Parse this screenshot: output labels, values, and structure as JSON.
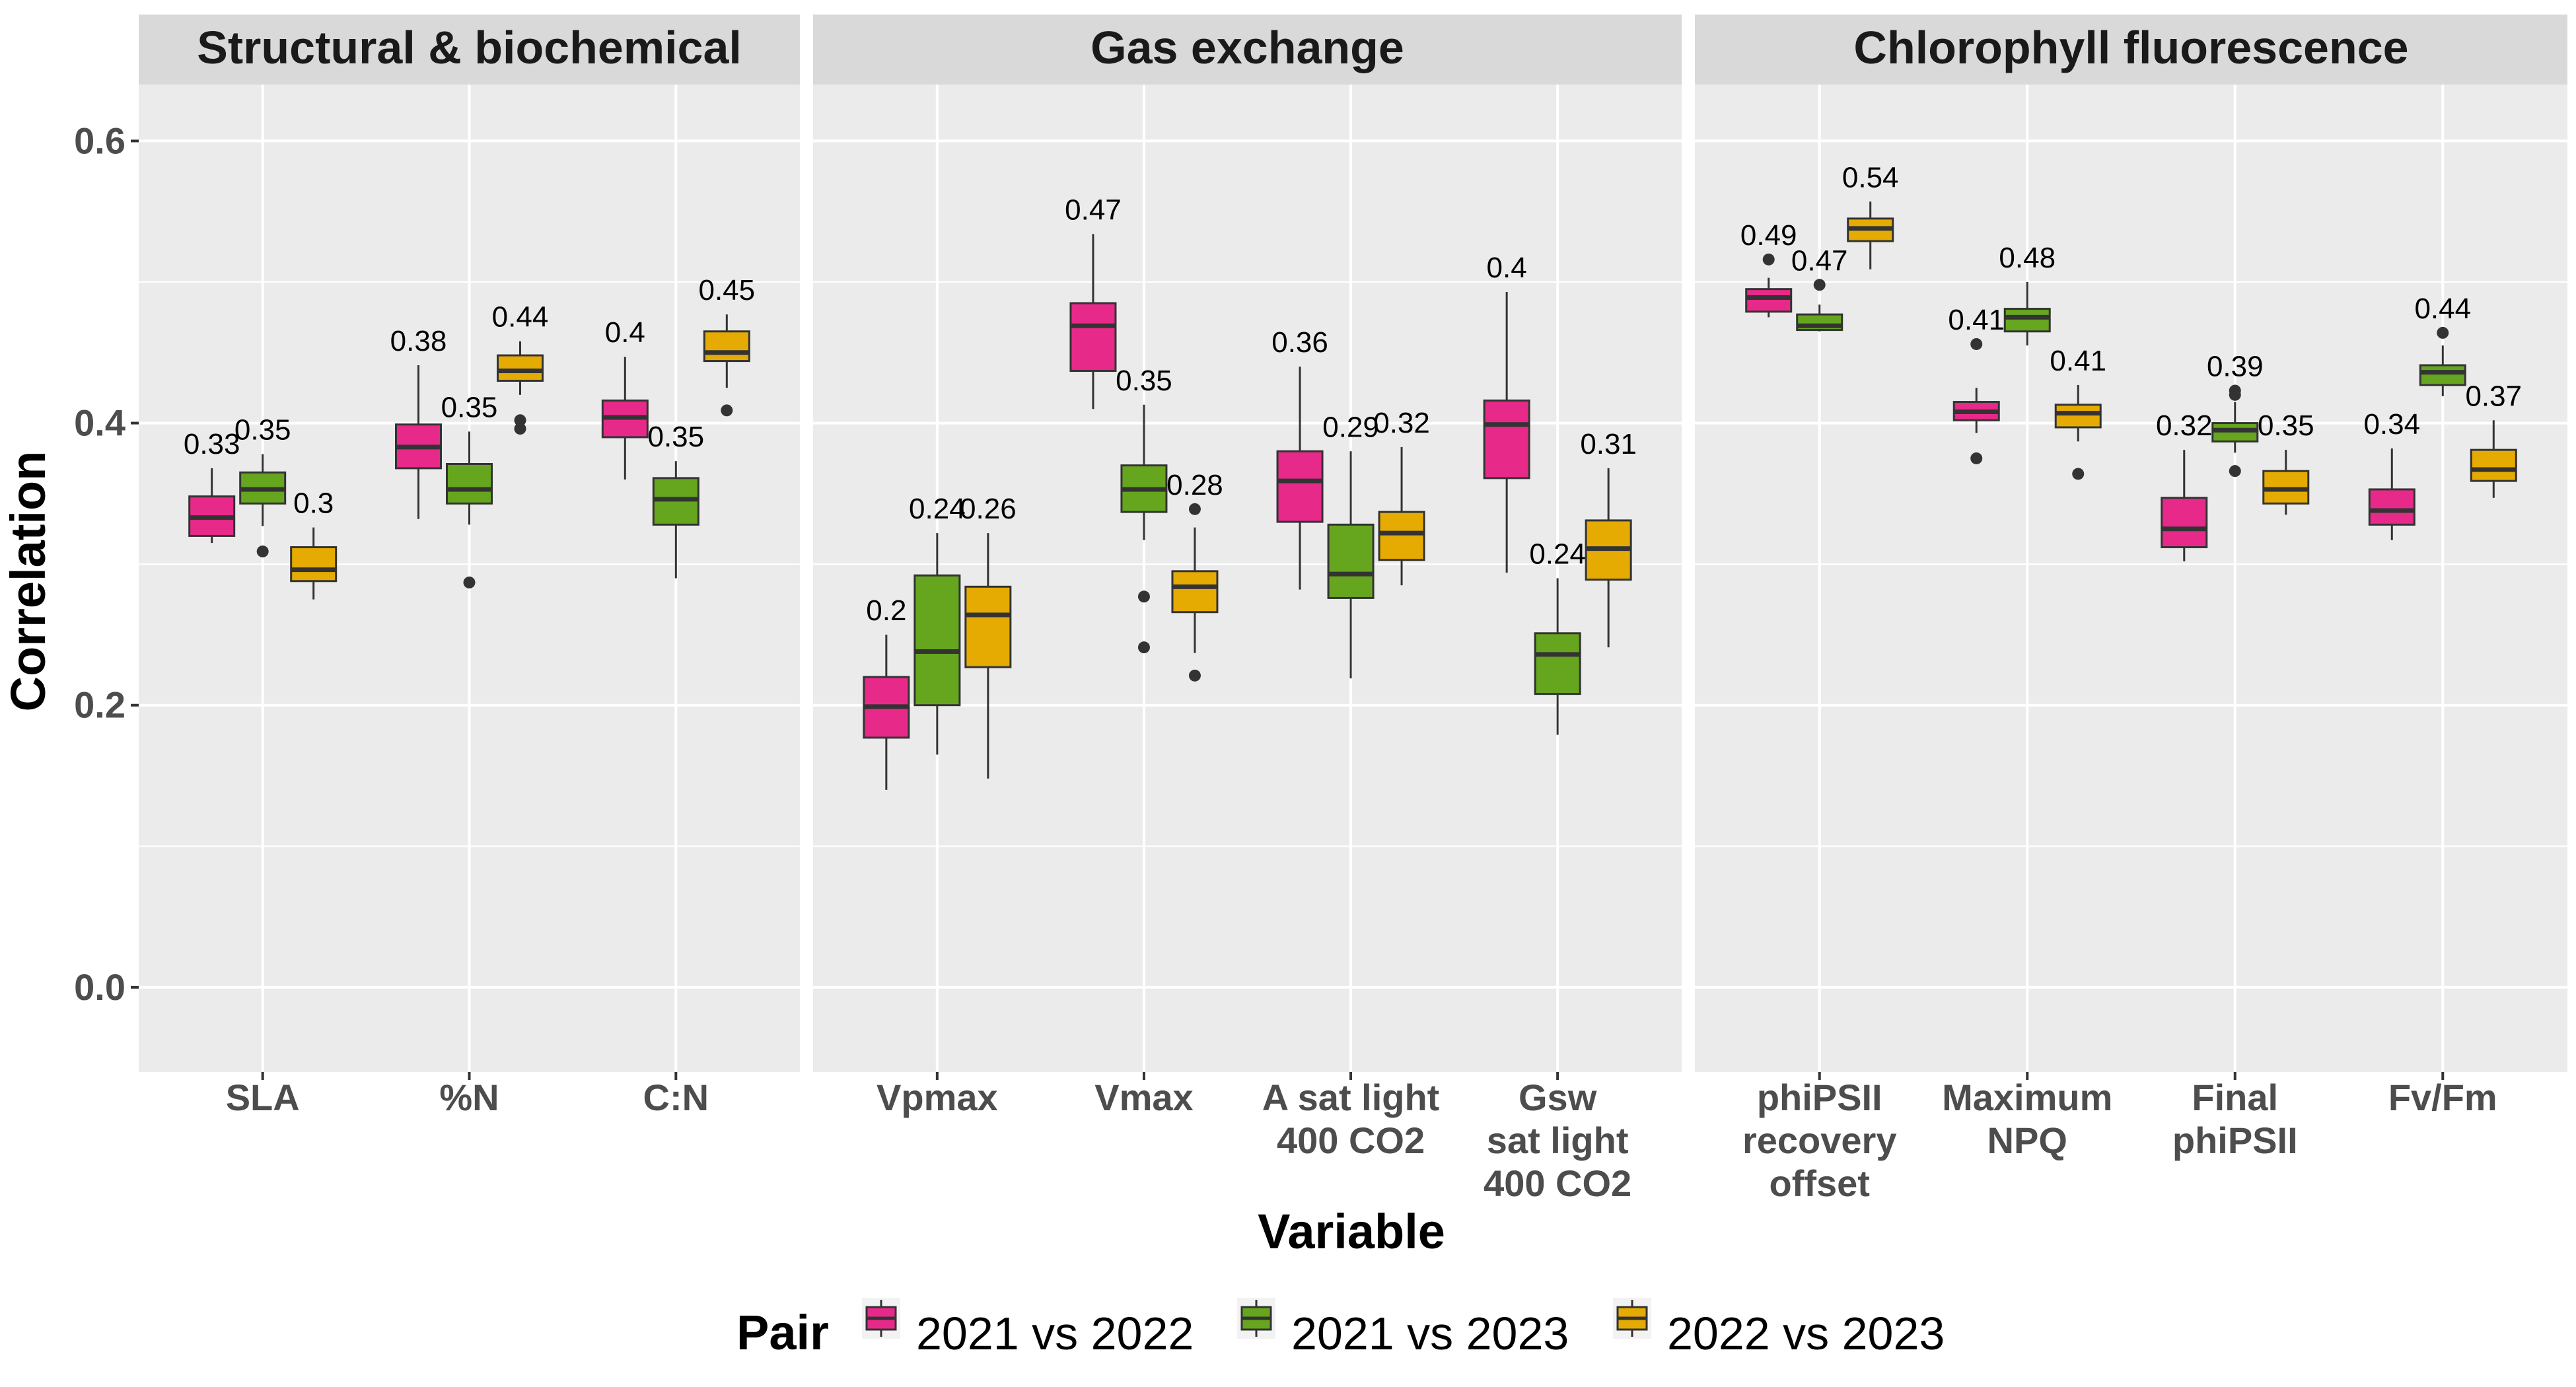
{
  "chart_data": {
    "type": "boxplot",
    "ylabel": "Correlation",
    "xlabel": "Variable",
    "ylim": [
      -0.06,
      0.64
    ],
    "y_ticks": [
      "0.0",
      "0.2",
      "0.4",
      "0.6"
    ],
    "grid": true,
    "legend": {
      "title": "Pair",
      "position": "bottom",
      "entries": [
        "2021 vs 2022",
        "2021 vs 2023",
        "2022 vs 2023"
      ]
    },
    "series_colors": [
      "#E7298A",
      "#66A61E",
      "#E6AB02"
    ],
    "facets": [
      {
        "title": "Structural & biochemical",
        "categories": [
          {
            "label": [
              "SLA"
            ],
            "boxes": [
              {
                "pair": "2021 vs 2022",
                "label": "0.33",
                "whislo": 0.315,
                "q1": 0.32,
                "med": 0.333,
                "q3": 0.348,
                "whishi": 0.368,
                "outliers": []
              },
              {
                "pair": "2021 vs 2023",
                "label": "0.35",
                "whislo": 0.327,
                "q1": 0.343,
                "med": 0.353,
                "q3": 0.365,
                "whishi": 0.378,
                "outliers": [
                  0.309
                ]
              },
              {
                "pair": "2022 vs 2023",
                "label": "0.3",
                "whislo": 0.275,
                "q1": 0.288,
                "med": 0.296,
                "q3": 0.312,
                "whishi": 0.326,
                "outliers": []
              }
            ]
          },
          {
            "label": [
              "%N"
            ],
            "boxes": [
              {
                "pair": "2021 vs 2022",
                "label": "0.38",
                "whislo": 0.332,
                "q1": 0.368,
                "med": 0.383,
                "q3": 0.399,
                "whishi": 0.441,
                "outliers": []
              },
              {
                "pair": "2021 vs 2023",
                "label": "0.35",
                "whislo": 0.328,
                "q1": 0.343,
                "med": 0.353,
                "q3": 0.371,
                "whishi": 0.394,
                "outliers": [
                  0.287
                ]
              },
              {
                "pair": "2022 vs 2023",
                "label": "0.44",
                "whislo": 0.42,
                "q1": 0.43,
                "med": 0.437,
                "q3": 0.448,
                "whishi": 0.458,
                "outliers": [
                  0.402,
                  0.396
                ]
              }
            ]
          },
          {
            "label": [
              "C:N"
            ],
            "boxes": [
              {
                "pair": "2021 vs 2022",
                "label": "0.4",
                "whislo": 0.36,
                "q1": 0.39,
                "med": 0.404,
                "q3": 0.416,
                "whishi": 0.447,
                "outliers": []
              },
              {
                "pair": "2021 vs 2023",
                "label": "0.35",
                "whislo": 0.29,
                "q1": 0.328,
                "med": 0.346,
                "q3": 0.361,
                "whishi": 0.373,
                "outliers": []
              },
              {
                "pair": "2022 vs 2023",
                "label": "0.45",
                "whislo": 0.425,
                "q1": 0.444,
                "med": 0.45,
                "q3": 0.465,
                "whishi": 0.477,
                "outliers": [
                  0.409
                ]
              }
            ]
          }
        ]
      },
      {
        "title": "Gas exchange",
        "categories": [
          {
            "label": [
              "Vpmax"
            ],
            "boxes": [
              {
                "pair": "2021 vs 2022",
                "label": "0.2",
                "whislo": 0.14,
                "q1": 0.177,
                "med": 0.199,
                "q3": 0.22,
                "whishi": 0.25,
                "outliers": []
              },
              {
                "pair": "2021 vs 2023",
                "label": "0.24",
                "whislo": 0.165,
                "q1": 0.2,
                "med": 0.238,
                "q3": 0.292,
                "whishi": 0.322,
                "outliers": []
              },
              {
                "pair": "2022 vs 2023",
                "label": "0.26",
                "whislo": 0.148,
                "q1": 0.227,
                "med": 0.264,
                "q3": 0.284,
                "whishi": 0.322,
                "outliers": []
              }
            ]
          },
          {
            "label": [
              "Vmax"
            ],
            "boxes": [
              {
                "pair": "2021 vs 2022",
                "label": "0.47",
                "whislo": 0.41,
                "q1": 0.437,
                "med": 0.469,
                "q3": 0.485,
                "whishi": 0.534,
                "outliers": []
              },
              {
                "pair": "2021 vs 2023",
                "label": "0.35",
                "whislo": 0.317,
                "q1": 0.337,
                "med": 0.353,
                "q3": 0.37,
                "whishi": 0.413,
                "outliers": [
                  0.277,
                  0.241
                ]
              },
              {
                "pair": "2022 vs 2023",
                "label": "0.28",
                "whislo": 0.237,
                "q1": 0.266,
                "med": 0.284,
                "q3": 0.295,
                "whishi": 0.326,
                "outliers": [
                  0.339,
                  0.221
                ]
              }
            ]
          },
          {
            "label": [
              "A sat light",
              "400 CO2"
            ],
            "boxes": [
              {
                "pair": "2021 vs 2022",
                "label": "0.36",
                "whislo": 0.282,
                "q1": 0.33,
                "med": 0.359,
                "q3": 0.38,
                "whishi": 0.44,
                "outliers": []
              },
              {
                "pair": "2021 vs 2023",
                "label": "0.29",
                "whislo": 0.219,
                "q1": 0.276,
                "med": 0.293,
                "q3": 0.328,
                "whishi": 0.38,
                "outliers": []
              },
              {
                "pair": "2022 vs 2023",
                "label": "0.32",
                "whislo": 0.285,
                "q1": 0.303,
                "med": 0.322,
                "q3": 0.337,
                "whishi": 0.383,
                "outliers": []
              }
            ]
          },
          {
            "label": [
              "Gsw",
              "sat light",
              "400 CO2"
            ],
            "boxes": [
              {
                "pair": "2021 vs 2022",
                "label": "0.4",
                "whislo": 0.294,
                "q1": 0.361,
                "med": 0.399,
                "q3": 0.416,
                "whishi": 0.493,
                "outliers": []
              },
              {
                "pair": "2021 vs 2023",
                "label": "0.24",
                "whislo": 0.179,
                "q1": 0.208,
                "med": 0.236,
                "q3": 0.251,
                "whishi": 0.29,
                "outliers": []
              },
              {
                "pair": "2022 vs 2023",
                "label": "0.31",
                "whislo": 0.241,
                "q1": 0.289,
                "med": 0.311,
                "q3": 0.331,
                "whishi": 0.368,
                "outliers": []
              }
            ]
          }
        ]
      },
      {
        "title": "Chlorophyll fluorescence",
        "categories": [
          {
            "label": [
              "phiPSII",
              "recovery",
              "offset"
            ],
            "boxes": [
              {
                "pair": "2021 vs 2022",
                "label": "0.49",
                "whislo": 0.475,
                "q1": 0.479,
                "med": 0.489,
                "q3": 0.495,
                "whishi": 0.503,
                "outliers": [
                  0.516
                ]
              },
              {
                "pair": "2021 vs 2023",
                "label": "0.47",
                "whislo": 0.465,
                "q1": 0.466,
                "med": 0.469,
                "q3": 0.477,
                "whishi": 0.484,
                "outliers": [
                  0.498
                ]
              },
              {
                "pair": "2022 vs 2023",
                "label": "0.54",
                "whislo": 0.509,
                "q1": 0.529,
                "med": 0.538,
                "q3": 0.545,
                "whishi": 0.557,
                "outliers": []
              }
            ]
          },
          {
            "label": [
              "Maximum",
              "NPQ"
            ],
            "boxes": [
              {
                "pair": "2021 vs 2022",
                "label": "0.41",
                "whislo": 0.393,
                "q1": 0.402,
                "med": 0.408,
                "q3": 0.415,
                "whishi": 0.425,
                "outliers": [
                  0.456,
                  0.375
                ]
              },
              {
                "pair": "2021 vs 2023",
                "label": "0.48",
                "whislo": 0.455,
                "q1": 0.465,
                "med": 0.475,
                "q3": 0.481,
                "whishi": 0.5,
                "outliers": []
              },
              {
                "pair": "2022 vs 2023",
                "label": "0.41",
                "whislo": 0.387,
                "q1": 0.397,
                "med": 0.407,
                "q3": 0.413,
                "whishi": 0.427,
                "outliers": [
                  0.364
                ]
              }
            ]
          },
          {
            "label": [
              "Final",
              "phiPSII"
            ],
            "boxes": [
              {
                "pair": "2021 vs 2022",
                "label": "0.32",
                "whislo": 0.302,
                "q1": 0.312,
                "med": 0.325,
                "q3": 0.347,
                "whishi": 0.381,
                "outliers": []
              },
              {
                "pair": "2021 vs 2023",
                "label": "0.39",
                "whislo": 0.379,
                "q1": 0.387,
                "med": 0.395,
                "q3": 0.4,
                "whishi": 0.415,
                "outliers": [
                  0.423,
                  0.42,
                  0.366
                ]
              },
              {
                "pair": "2022 vs 2023",
                "label": "0.35",
                "whislo": 0.335,
                "q1": 0.343,
                "med": 0.353,
                "q3": 0.366,
                "whishi": 0.381,
                "outliers": []
              }
            ]
          },
          {
            "label": [
              "Fv/Fm"
            ],
            "boxes": [
              {
                "pair": "2021 vs 2022",
                "label": "0.34",
                "whislo": 0.317,
                "q1": 0.328,
                "med": 0.338,
                "q3": 0.353,
                "whishi": 0.382,
                "outliers": []
              },
              {
                "pair": "2021 vs 2023",
                "label": "0.44",
                "whislo": 0.419,
                "q1": 0.427,
                "med": 0.436,
                "q3": 0.441,
                "whishi": 0.455,
                "outliers": [
                  0.464
                ]
              },
              {
                "pair": "2022 vs 2023",
                "label": "0.37",
                "whislo": 0.347,
                "q1": 0.359,
                "med": 0.367,
                "q3": 0.381,
                "whishi": 0.402,
                "outliers": []
              }
            ]
          }
        ]
      }
    ]
  }
}
